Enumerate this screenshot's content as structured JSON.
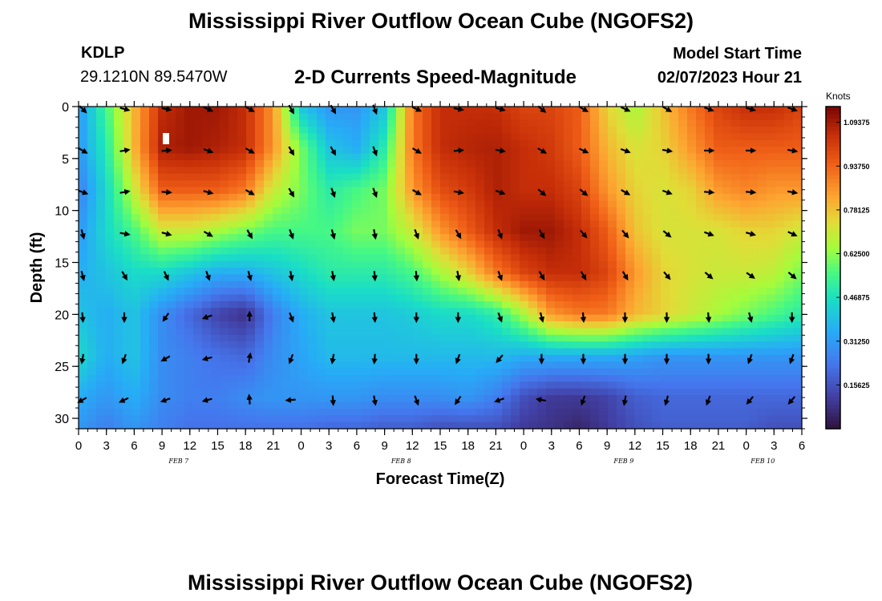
{
  "header": {
    "title": "Mississippi River Outflow Ocean Cube (NGOFS2)",
    "station_id": "KDLP",
    "station_coords": "29.1210N  89.5470W",
    "subtitle": "2-D Currents Speed-Magnitude",
    "model_start_label": "Model Start Time",
    "model_start_value": "02/07/2023 Hour 21"
  },
  "footer": {
    "title": "Mississippi River Outflow Ocean Cube (NGOFS2)"
  },
  "chart_data": {
    "type": "heatmap",
    "title": "2-D Currents Speed-Magnitude",
    "xlabel": "Forecast Time(Z)",
    "ylabel": "Depth (ft)",
    "x_range_hours": [
      0,
      78
    ],
    "x_ticks": [
      {
        "h": 0,
        "label": "0"
      },
      {
        "h": 3,
        "label": "3"
      },
      {
        "h": 6,
        "label": "6"
      },
      {
        "h": 9,
        "label": "9"
      },
      {
        "h": 12,
        "label": "12"
      },
      {
        "h": 15,
        "label": "15"
      },
      {
        "h": 18,
        "label": "18"
      },
      {
        "h": 21,
        "label": "21"
      },
      {
        "h": 24,
        "label": "0"
      },
      {
        "h": 27,
        "label": "3"
      },
      {
        "h": 30,
        "label": "6"
      },
      {
        "h": 33,
        "label": "9"
      },
      {
        "h": 36,
        "label": "12"
      },
      {
        "h": 39,
        "label": "15"
      },
      {
        "h": 42,
        "label": "18"
      },
      {
        "h": 45,
        "label": "21"
      },
      {
        "h": 48,
        "label": "0"
      },
      {
        "h": 51,
        "label": "3"
      },
      {
        "h": 54,
        "label": "6"
      },
      {
        "h": 57,
        "label": "9"
      },
      {
        "h": 60,
        "label": "12"
      },
      {
        "h": 63,
        "label": "15"
      },
      {
        "h": 66,
        "label": "18"
      },
      {
        "h": 69,
        "label": "21"
      },
      {
        "h": 72,
        "label": "0"
      },
      {
        "h": 75,
        "label": "3"
      },
      {
        "h": 78,
        "label": "6"
      }
    ],
    "date_labels": [
      {
        "h": 12,
        "label": "FEB 7"
      },
      {
        "h": 36,
        "label": "FEB 8"
      },
      {
        "h": 60,
        "label": "FEB 9"
      },
      {
        "h": 75,
        "label": "FEB 10"
      }
    ],
    "y_range_ft": [
      0,
      31
    ],
    "y_ticks": [
      0,
      5,
      10,
      15,
      20,
      25,
      30
    ],
    "colorbar": {
      "unit": "Knots",
      "range": [
        0.0,
        1.15
      ],
      "labels": [
        "1.09375",
        "0.93750",
        "0.78125",
        "0.62500",
        "0.46875",
        "0.31250",
        "0.15625"
      ],
      "label_values": [
        1.09375,
        0.9375,
        0.78125,
        0.625,
        0.46875,
        0.3125,
        0.15625
      ]
    },
    "speed_field": {
      "description": "Current speed in knots on a time x depth grid (values estimated from image)",
      "times_h": [
        0,
        3,
        6,
        9,
        12,
        15,
        18,
        21,
        24,
        27,
        30,
        33,
        36,
        39,
        42,
        45,
        48,
        51,
        54,
        57,
        60,
        63,
        66,
        69,
        72,
        75,
        78
      ],
      "depths_ft": [
        0,
        4,
        8,
        12,
        16,
        20,
        24,
        28,
        31
      ],
      "values": [
        [
          0.3,
          0.3,
          0.25,
          0.3,
          0.35,
          0.4,
          0.45,
          0.35,
          0.3
        ],
        [
          0.55,
          0.5,
          0.45,
          0.45,
          0.4,
          0.35,
          0.35,
          0.3,
          0.25
        ],
        [
          0.8,
          0.8,
          0.7,
          0.55,
          0.45,
          0.4,
          0.4,
          0.35,
          0.3
        ],
        [
          1.05,
          1.08,
          0.95,
          0.7,
          0.45,
          0.28,
          0.28,
          0.28,
          0.25
        ],
        [
          1.1,
          1.1,
          0.95,
          0.7,
          0.4,
          0.2,
          0.25,
          0.25,
          0.22
        ],
        [
          1.1,
          1.08,
          0.95,
          0.65,
          0.35,
          0.12,
          0.22,
          0.25,
          0.22
        ],
        [
          1.05,
          1.05,
          0.9,
          0.6,
          0.35,
          0.08,
          0.2,
          0.28,
          0.22
        ],
        [
          0.85,
          0.85,
          0.7,
          0.55,
          0.4,
          0.25,
          0.28,
          0.3,
          0.22
        ],
        [
          0.4,
          0.6,
          0.6,
          0.55,
          0.45,
          0.35,
          0.33,
          0.3,
          0.22
        ],
        [
          0.3,
          0.4,
          0.5,
          0.55,
          0.5,
          0.4,
          0.38,
          0.3,
          0.2
        ],
        [
          0.3,
          0.35,
          0.55,
          0.6,
          0.5,
          0.4,
          0.38,
          0.3,
          0.2
        ],
        [
          0.4,
          0.5,
          0.6,
          0.6,
          0.5,
          0.4,
          0.38,
          0.28,
          0.18
        ],
        [
          0.9,
          0.9,
          0.85,
          0.7,
          0.55,
          0.42,
          0.38,
          0.28,
          0.18
        ],
        [
          1.05,
          1.05,
          0.98,
          0.85,
          0.65,
          0.45,
          0.38,
          0.28,
          0.15
        ],
        [
          1.05,
          1.07,
          1.02,
          0.95,
          0.75,
          0.45,
          0.38,
          0.3,
          0.15
        ],
        [
          1.05,
          1.08,
          1.08,
          1.05,
          0.9,
          0.5,
          0.38,
          0.25,
          0.15
        ],
        [
          1.0,
          1.05,
          1.05,
          1.1,
          1.0,
          0.65,
          0.35,
          0.15,
          0.1
        ],
        [
          1.0,
          1.02,
          1.05,
          1.1,
          1.05,
          0.85,
          0.35,
          0.1,
          0.08
        ],
        [
          0.95,
          0.95,
          1.0,
          1.05,
          1.05,
          0.9,
          0.35,
          0.1,
          0.05
        ],
        [
          0.75,
          0.8,
          0.85,
          0.95,
          1.0,
          0.9,
          0.35,
          0.12,
          0.1
        ],
        [
          0.65,
          0.72,
          0.75,
          0.78,
          0.85,
          0.8,
          0.33,
          0.18,
          0.15
        ],
        [
          0.78,
          0.75,
          0.72,
          0.72,
          0.75,
          0.75,
          0.3,
          0.2,
          0.18
        ],
        [
          0.9,
          0.85,
          0.75,
          0.72,
          0.72,
          0.7,
          0.3,
          0.2,
          0.18
        ],
        [
          1.0,
          0.95,
          0.85,
          0.72,
          0.7,
          0.65,
          0.3,
          0.2,
          0.18
        ],
        [
          1.05,
          0.95,
          0.88,
          0.75,
          0.7,
          0.6,
          0.3,
          0.2,
          0.18
        ],
        [
          1.05,
          0.95,
          0.85,
          0.75,
          0.68,
          0.55,
          0.3,
          0.2,
          0.15
        ],
        [
          1.0,
          0.95,
          0.85,
          0.7,
          0.6,
          0.5,
          0.3,
          0.2,
          0.15
        ]
      ]
    },
    "vectors": {
      "description": "Current direction arrows; dir_deg in degrees clockwise from north",
      "times_h": [
        0,
        4.5,
        9,
        13.5,
        18,
        22.5,
        27,
        31.5,
        36,
        40.5,
        45,
        49.5,
        54,
        58.5,
        63,
        67.5,
        72,
        76.5
      ],
      "depths_ft": [
        0,
        4,
        8,
        12,
        16,
        20,
        24,
        28
      ],
      "dir_deg": [
        [
          135,
          105,
          100,
          115,
          120,
          150,
          150,
          160,
          115,
          100,
          105,
          130,
          120,
          115,
          120,
          110,
          105,
          110
        ],
        [
          120,
          80,
          85,
          110,
          120,
          150,
          150,
          160,
          120,
          85,
          100,
          120,
          115,
          110,
          100,
          90,
          90,
          100
        ],
        [
          110,
          80,
          95,
          105,
          120,
          150,
          160,
          160,
          120,
          100,
          110,
          130,
          130,
          120,
          110,
          95,
          95,
          100
        ],
        [
          165,
          100,
          105,
          120,
          150,
          160,
          165,
          170,
          160,
          150,
          160,
          150,
          140,
          140,
          130,
          110,
          105,
          115
        ],
        [
          165,
          150,
          155,
          160,
          165,
          170,
          170,
          175,
          175,
          170,
          160,
          150,
          150,
          150,
          140,
          130,
          125,
          130
        ],
        [
          175,
          180,
          215,
          250,
          0,
          160,
          170,
          175,
          180,
          180,
          160,
          165,
          175,
          180,
          180,
          175,
          165,
          180
        ],
        [
          190,
          200,
          240,
          255,
          10,
          200,
          190,
          185,
          180,
          200,
          220,
          180,
          180,
          180,
          180,
          180,
          200,
          200
        ],
        [
          240,
          245,
          250,
          255,
          355,
          265,
          175,
          170,
          160,
          215,
          250,
          280,
          200,
          190,
          195,
          200,
          220,
          220
        ]
      ]
    }
  }
}
